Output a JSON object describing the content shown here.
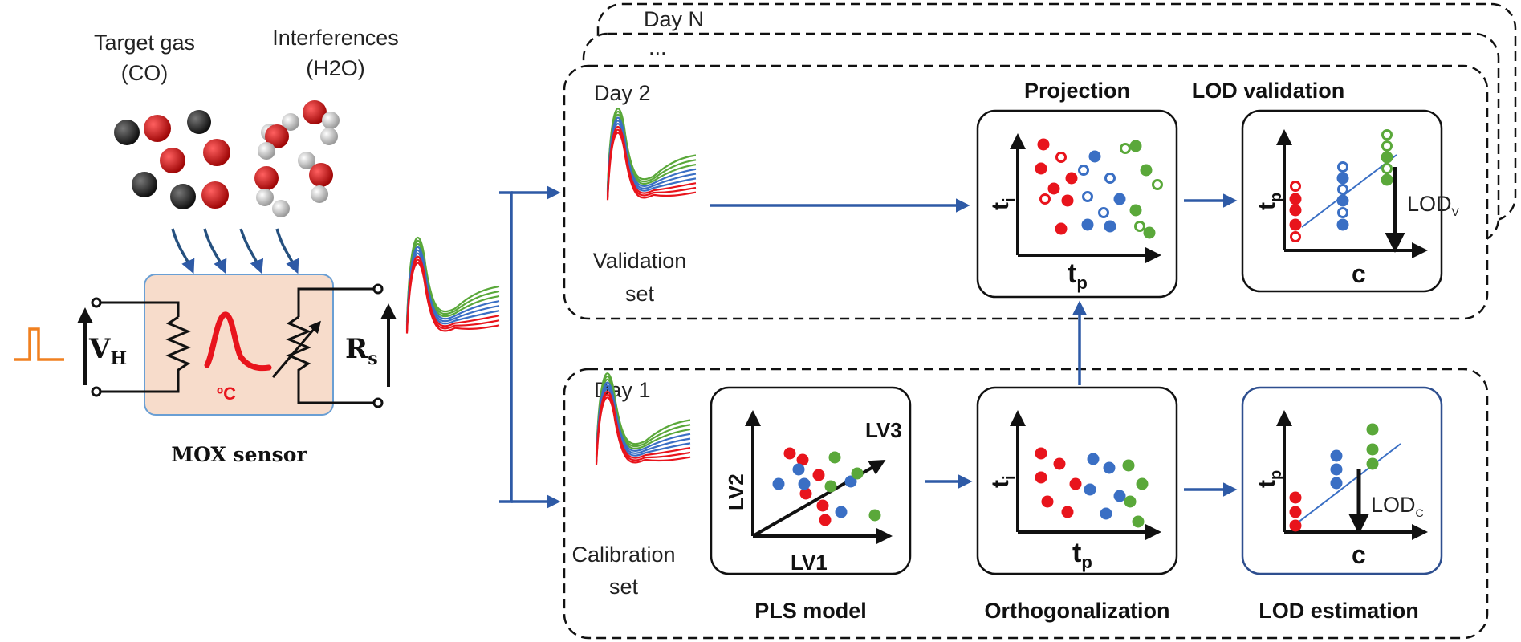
{
  "gases": {
    "target_line1": "Target gas",
    "target_line2": "(CO)",
    "interf_line1": "Interferences",
    "interf_line2": "(H2O)"
  },
  "sensor": {
    "title": "MOX sensor",
    "heater_voltage_main": "V",
    "heater_voltage_sub": "H",
    "resistance_main": "R",
    "resistance_sub": "s",
    "temp_unit": "ºC"
  },
  "days": {
    "day_n": "Day N",
    "ellipsis": "...",
    "day2": "Day 2",
    "day1": "Day 1"
  },
  "sets": {
    "validation_line1": "Validation",
    "validation_line2": "set",
    "calibration_line1": "Calibration",
    "calibration_line2": "set"
  },
  "panels": {
    "projection": "Projection",
    "lod_validation": "LOD validation",
    "pls_model": "PLS model",
    "orthogonalization": "Orthogonalization",
    "lod_estimation": "LOD estimation"
  },
  "axes": {
    "tp_main": "t",
    "tp_sub": "p",
    "ti_main": "t",
    "ti_sub": "i",
    "c": "c",
    "lv1": "LV1",
    "lv2": "LV2",
    "lv3": "LV3"
  },
  "lod": {
    "v_main": "LOD",
    "v_sub": "V",
    "c_main": "LOD",
    "c_sub": "C"
  },
  "colors": {
    "red": "#e8141c",
    "blue": "#3a6fc4",
    "green": "#5aa83a",
    "arrow": "#2e5aa6",
    "pulse": "#f08020",
    "sensor_fill": "#f7dccb",
    "sensor_stroke": "#6a9fd4",
    "molecule_red": "#c81010",
    "molecule_dark": "#2a2a2a",
    "molecule_white": "#d9d9d9"
  }
}
